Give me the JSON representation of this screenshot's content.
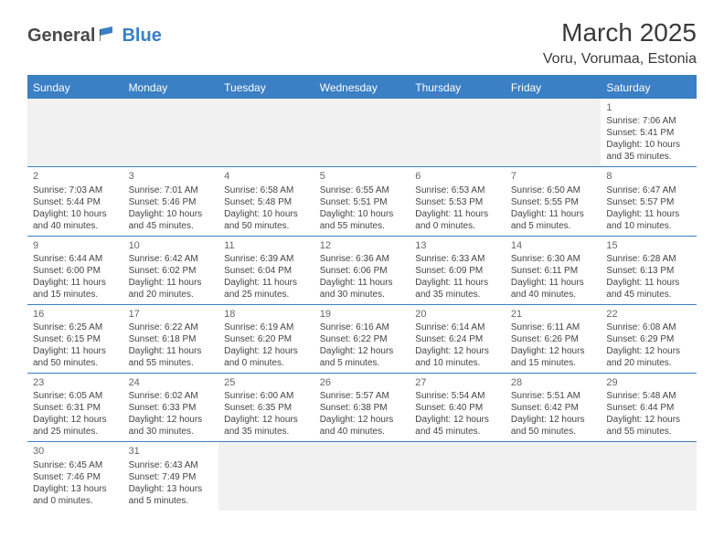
{
  "logo": {
    "part1": "General",
    "part2": "Blue"
  },
  "title": "March 2025",
  "location": "Voru, Vorumaa, Estonia",
  "colors": {
    "accent": "#3b7fc4",
    "text_dark": "#3a3a3a",
    "text_muted": "#666666",
    "cell_text": "#444444",
    "empty_bg": "#f1f1f1",
    "white": "#ffffff"
  },
  "weekdays": [
    "Sunday",
    "Monday",
    "Tuesday",
    "Wednesday",
    "Thursday",
    "Friday",
    "Saturday"
  ],
  "weeks": [
    [
      null,
      null,
      null,
      null,
      null,
      null,
      {
        "n": "1",
        "sr": "7:06 AM",
        "ss": "5:41 PM",
        "dl": "10 hours and 35 minutes."
      }
    ],
    [
      {
        "n": "2",
        "sr": "7:03 AM",
        "ss": "5:44 PM",
        "dl": "10 hours and 40 minutes."
      },
      {
        "n": "3",
        "sr": "7:01 AM",
        "ss": "5:46 PM",
        "dl": "10 hours and 45 minutes."
      },
      {
        "n": "4",
        "sr": "6:58 AM",
        "ss": "5:48 PM",
        "dl": "10 hours and 50 minutes."
      },
      {
        "n": "5",
        "sr": "6:55 AM",
        "ss": "5:51 PM",
        "dl": "10 hours and 55 minutes."
      },
      {
        "n": "6",
        "sr": "6:53 AM",
        "ss": "5:53 PM",
        "dl": "11 hours and 0 minutes."
      },
      {
        "n": "7",
        "sr": "6:50 AM",
        "ss": "5:55 PM",
        "dl": "11 hours and 5 minutes."
      },
      {
        "n": "8",
        "sr": "6:47 AM",
        "ss": "5:57 PM",
        "dl": "11 hours and 10 minutes."
      }
    ],
    [
      {
        "n": "9",
        "sr": "6:44 AM",
        "ss": "6:00 PM",
        "dl": "11 hours and 15 minutes."
      },
      {
        "n": "10",
        "sr": "6:42 AM",
        "ss": "6:02 PM",
        "dl": "11 hours and 20 minutes."
      },
      {
        "n": "11",
        "sr": "6:39 AM",
        "ss": "6:04 PM",
        "dl": "11 hours and 25 minutes."
      },
      {
        "n": "12",
        "sr": "6:36 AM",
        "ss": "6:06 PM",
        "dl": "11 hours and 30 minutes."
      },
      {
        "n": "13",
        "sr": "6:33 AM",
        "ss": "6:09 PM",
        "dl": "11 hours and 35 minutes."
      },
      {
        "n": "14",
        "sr": "6:30 AM",
        "ss": "6:11 PM",
        "dl": "11 hours and 40 minutes."
      },
      {
        "n": "15",
        "sr": "6:28 AM",
        "ss": "6:13 PM",
        "dl": "11 hours and 45 minutes."
      }
    ],
    [
      {
        "n": "16",
        "sr": "6:25 AM",
        "ss": "6:15 PM",
        "dl": "11 hours and 50 minutes."
      },
      {
        "n": "17",
        "sr": "6:22 AM",
        "ss": "6:18 PM",
        "dl": "11 hours and 55 minutes."
      },
      {
        "n": "18",
        "sr": "6:19 AM",
        "ss": "6:20 PM",
        "dl": "12 hours and 0 minutes."
      },
      {
        "n": "19",
        "sr": "6:16 AM",
        "ss": "6:22 PM",
        "dl": "12 hours and 5 minutes."
      },
      {
        "n": "20",
        "sr": "6:14 AM",
        "ss": "6:24 PM",
        "dl": "12 hours and 10 minutes."
      },
      {
        "n": "21",
        "sr": "6:11 AM",
        "ss": "6:26 PM",
        "dl": "12 hours and 15 minutes."
      },
      {
        "n": "22",
        "sr": "6:08 AM",
        "ss": "6:29 PM",
        "dl": "12 hours and 20 minutes."
      }
    ],
    [
      {
        "n": "23",
        "sr": "6:05 AM",
        "ss": "6:31 PM",
        "dl": "12 hours and 25 minutes."
      },
      {
        "n": "24",
        "sr": "6:02 AM",
        "ss": "6:33 PM",
        "dl": "12 hours and 30 minutes."
      },
      {
        "n": "25",
        "sr": "6:00 AM",
        "ss": "6:35 PM",
        "dl": "12 hours and 35 minutes."
      },
      {
        "n": "26",
        "sr": "5:57 AM",
        "ss": "6:38 PM",
        "dl": "12 hours and 40 minutes."
      },
      {
        "n": "27",
        "sr": "5:54 AM",
        "ss": "6:40 PM",
        "dl": "12 hours and 45 minutes."
      },
      {
        "n": "28",
        "sr": "5:51 AM",
        "ss": "6:42 PM",
        "dl": "12 hours and 50 minutes."
      },
      {
        "n": "29",
        "sr": "5:48 AM",
        "ss": "6:44 PM",
        "dl": "12 hours and 55 minutes."
      }
    ],
    [
      {
        "n": "30",
        "sr": "6:45 AM",
        "ss": "7:46 PM",
        "dl": "13 hours and 0 minutes."
      },
      {
        "n": "31",
        "sr": "6:43 AM",
        "ss": "7:49 PM",
        "dl": "13 hours and 5 minutes."
      },
      null,
      null,
      null,
      null,
      null
    ]
  ],
  "labels": {
    "sunrise": "Sunrise:",
    "sunset": "Sunset:",
    "daylight": "Daylight:"
  }
}
